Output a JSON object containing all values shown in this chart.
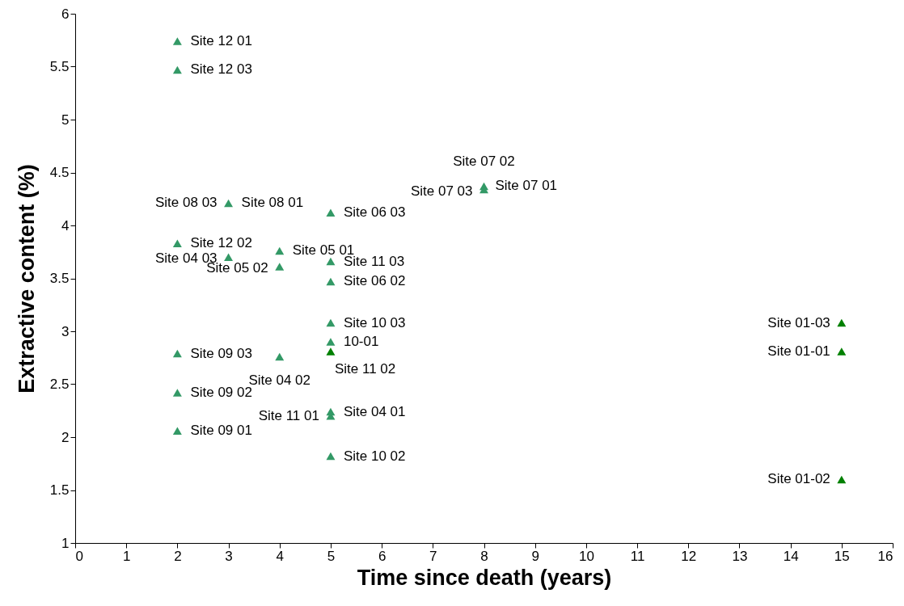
{
  "chart_data": {
    "type": "scatter",
    "xlabel": "Time since death (years)",
    "ylabel": "Extractive content (%)",
    "xlim": [
      0,
      16
    ],
    "xticks": [
      0,
      1,
      2,
      3,
      4,
      5,
      6,
      7,
      8,
      9,
      10,
      11,
      12,
      13,
      14,
      15,
      16
    ],
    "ylim": [
      1,
      6
    ],
    "yticks": [
      1,
      1.5,
      2,
      2.5,
      3,
      3.5,
      4,
      4.5,
      5,
      5.5,
      6
    ],
    "grid": false,
    "marker": "triangle",
    "series": [
      {
        "color": "#339966",
        "x": [
          2,
          2,
          2,
          2,
          2,
          2,
          3,
          3,
          4,
          4,
          4,
          5,
          5,
          5,
          5,
          5,
          5,
          5,
          5,
          8,
          8
        ],
        "values": [
          5.74,
          5.47,
          3.83,
          2.79,
          2.42,
          2.06,
          4.21,
          3.7,
          3.76,
          3.61,
          2.76,
          4.12,
          3.66,
          3.47,
          3.08,
          2.9,
          2.2,
          2.24,
          1.82,
          4.37,
          4.34
        ]
      },
      {
        "color": "#008000",
        "x": [
          5,
          15,
          15,
          15
        ],
        "values": [
          2.81,
          3.08,
          2.81,
          1.6
        ]
      }
    ],
    "annotations": [
      {
        "text": "Site 12 01",
        "x": 2,
        "y": 5.74
      },
      {
        "text": "Site 12 03",
        "x": 2,
        "y": 5.47
      },
      {
        "text": "Site 12 02",
        "x": 2,
        "y": 3.83
      },
      {
        "text": "Site 09 03",
        "x": 2,
        "y": 2.79
      },
      {
        "text": "Site 09 02",
        "x": 2,
        "y": 2.42
      },
      {
        "text": "Site 09 01",
        "x": 2,
        "y": 2.06
      },
      {
        "text": "Site 08 03",
        "x": 3,
        "y": 4.21
      },
      {
        "text": "Site 08 01",
        "x": 3,
        "y": 4.21
      },
      {
        "text": "Site 04 03",
        "x": 3,
        "y": 3.7
      },
      {
        "text": "Site 05 01",
        "x": 4,
        "y": 3.76
      },
      {
        "text": "Site 05 02",
        "x": 4,
        "y": 3.61
      },
      {
        "text": "Site 04 02",
        "x": 4,
        "y": 2.76
      },
      {
        "text": "Site 06 03",
        "x": 5,
        "y": 4.12
      },
      {
        "text": "Site 11 03",
        "x": 5,
        "y": 3.66
      },
      {
        "text": "Site 06 02",
        "x": 5,
        "y": 3.47
      },
      {
        "text": "Site 10 03",
        "x": 5,
        "y": 3.08
      },
      {
        "text": "10-01",
        "x": 5,
        "y": 2.9
      },
      {
        "text": "Site 11 02",
        "x": 5,
        "y": 2.81
      },
      {
        "text": "Site 11 01",
        "x": 5,
        "y": 2.2
      },
      {
        "text": "Site 04 01",
        "x": 5,
        "y": 2.24
      },
      {
        "text": "Site 10 02",
        "x": 5,
        "y": 1.82
      },
      {
        "text": "Site 07 02",
        "x": 8,
        "y": 4.37
      },
      {
        "text": "Site 07 03",
        "x": 8,
        "y": 4.34
      },
      {
        "text": "Site 07 01",
        "x": 8,
        "y": 4.36
      },
      {
        "text": "Site 01-03",
        "x": 15,
        "y": 3.08
      },
      {
        "text": "Site 01-01",
        "x": 15,
        "y": 2.81
      },
      {
        "text": "Site 01-02",
        "x": 15,
        "y": 1.6
      }
    ]
  }
}
